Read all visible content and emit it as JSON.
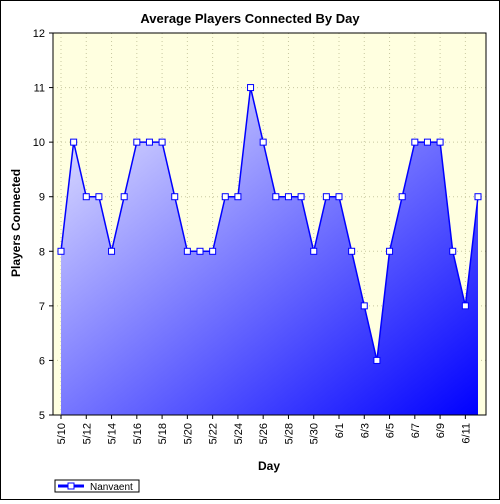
{
  "chart_data": {
    "type": "area",
    "title": "Average Players Connected By Day",
    "xlabel": "Day",
    "ylabel": "Players Connected",
    "ylim": [
      5,
      12
    ],
    "yticks": [
      5,
      6,
      7,
      8,
      9,
      10,
      11,
      12
    ],
    "grid": true,
    "legend_position": "bottom-left",
    "categories": [
      "5/10",
      "5/11",
      "5/12",
      "5/13",
      "5/14",
      "5/15",
      "5/16",
      "5/17",
      "5/18",
      "5/19",
      "5/20",
      "5/21",
      "5/22",
      "5/23",
      "5/24",
      "5/25",
      "5/26",
      "5/27",
      "5/28",
      "5/29",
      "5/30",
      "5/31",
      "6/1",
      "6/2",
      "6/3",
      "6/4",
      "6/5",
      "6/6",
      "6/7",
      "6/8",
      "6/9",
      "6/10",
      "6/11",
      "6/12"
    ],
    "tick_labels": [
      "5/10",
      "5/12",
      "5/14",
      "5/16",
      "5/18",
      "5/20",
      "5/22",
      "5/24",
      "5/26",
      "5/28",
      "5/30",
      "6/1",
      "6/3",
      "6/5",
      "6/7",
      "6/9",
      "6/11"
    ],
    "series": [
      {
        "name": "Nanvaent",
        "color": "#0000ff",
        "values": [
          8,
          10,
          9,
          9,
          8,
          9,
          10,
          10,
          10,
          9,
          8,
          8,
          8,
          9,
          9,
          11,
          10,
          9,
          9,
          9,
          8,
          9,
          9,
          8,
          7,
          6,
          8,
          9,
          10,
          10,
          10,
          8,
          7,
          9
        ]
      }
    ],
    "colors": {
      "plot_background": "#ffffe0",
      "fill_light": "#e6e6ff",
      "fill_dark": "#0000ff",
      "line": "#0000ff"
    }
  }
}
